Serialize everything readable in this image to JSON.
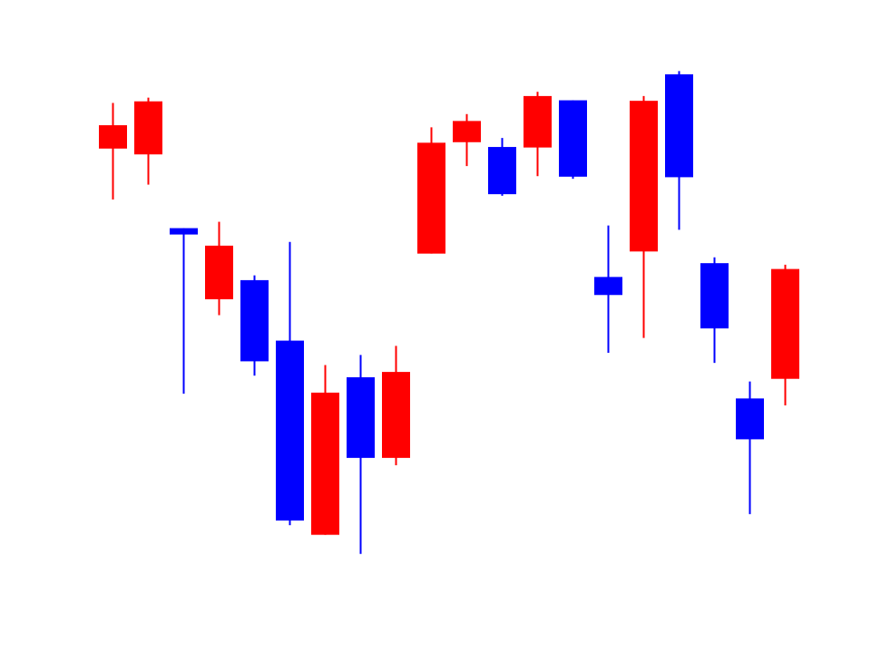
{
  "chart_data": {
    "type": "candlestick",
    "title": "",
    "xlabel": "",
    "ylabel": "",
    "axes_visible": false,
    "grid": false,
    "ylim": [
      0,
      100
    ],
    "colors": {
      "rising": "#0000ff",
      "falling": "#ff0000"
    },
    "candles": [
      {
        "open": 85.8,
        "high": 90.0,
        "low": 71.8,
        "close": 81.4
      },
      {
        "open": 90.3,
        "high": 91.0,
        "low": 74.6,
        "close": 80.3
      },
      {
        "open": 65.2,
        "high": 66.4,
        "low": 35.2,
        "close": 66.4
      },
      {
        "open": 63.1,
        "high": 67.6,
        "low": 50.0,
        "close": 53.0
      },
      {
        "open": 41.3,
        "high": 57.5,
        "low": 38.6,
        "close": 56.6
      },
      {
        "open": 11.3,
        "high": 63.8,
        "low": 10.4,
        "close": 45.2
      },
      {
        "open": 35.4,
        "high": 40.6,
        "low": 8.6,
        "close": 8.6
      },
      {
        "open": 23.1,
        "high": 42.5,
        "low": 5.0,
        "close": 38.3
      },
      {
        "open": 39.3,
        "high": 44.2,
        "low": 21.7,
        "close": 23.1
      },
      {
        "open": 82.5,
        "high": 85.4,
        "low": 61.6,
        "close": 61.6
      },
      {
        "open": 86.6,
        "high": 87.9,
        "low": 78.1,
        "close": 82.6
      },
      {
        "open": 72.8,
        "high": 83.4,
        "low": 72.5,
        "close": 81.7
      },
      {
        "open": 91.3,
        "high": 92.1,
        "low": 76.2,
        "close": 81.6
      },
      {
        "open": 76.1,
        "high": 90.5,
        "low": 75.7,
        "close": 90.5
      },
      {
        "open": 53.8,
        "high": 66.9,
        "low": 42.9,
        "close": 57.2
      },
      {
        "open": 90.4,
        "high": 91.3,
        "low": 45.7,
        "close": 62.0
      },
      {
        "open": 76.0,
        "high": 96.0,
        "low": 66.1,
        "close": 95.4
      },
      {
        "open": 47.5,
        "high": 60.9,
        "low": 41.0,
        "close": 59.8
      },
      {
        "open": 26.6,
        "high": 37.5,
        "low": 12.5,
        "close": 34.3
      },
      {
        "open": 58.7,
        "high": 59.5,
        "low": 33.0,
        "close": 38.0
      }
    ]
  }
}
